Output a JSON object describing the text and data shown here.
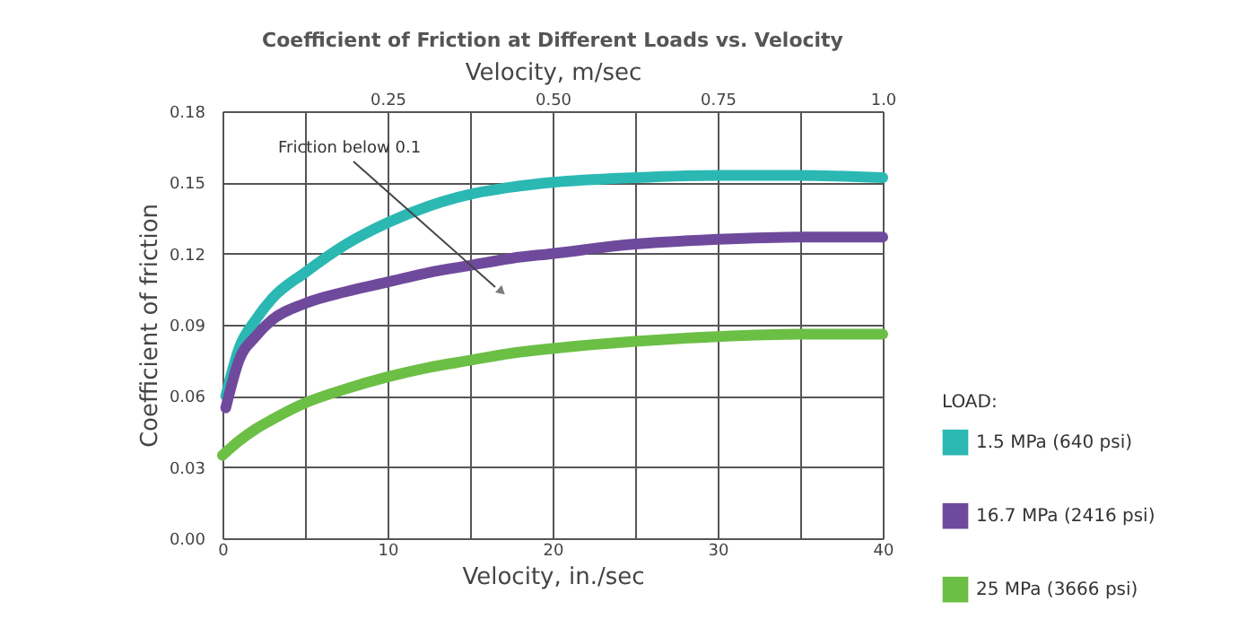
{
  "chart_data": {
    "type": "line",
    "title": "Coefficient of Friction at Different Loads vs. Velocity",
    "xlabel": "Velocity, in./sec",
    "ylabel": "Coefficient of friction",
    "x2label": "Velocity, m/sec",
    "legend_title": "LOAD:",
    "x": [
      0.2,
      1,
      2,
      3,
      5,
      7.5,
      10,
      12.5,
      15,
      17.5,
      20,
      25,
      30,
      35,
      40
    ],
    "series": [
      {
        "name": "1.5 MPa (640 psi)",
        "color": "#2bb8b3",
        "values": [
          0.06,
          0.08,
          0.092,
          0.101,
          0.112,
          0.124,
          0.133,
          0.14,
          0.145,
          0.148,
          0.15,
          0.152,
          0.153,
          0.153,
          0.152
        ]
      },
      {
        "name": "16.7 MPa (2416 psi)",
        "color": "#6f4a9c",
        "values": [
          0.055,
          0.075,
          0.085,
          0.092,
          0.099,
          0.104,
          0.108,
          0.112,
          0.115,
          0.118,
          0.12,
          0.124,
          0.126,
          0.127,
          0.127
        ]
      },
      {
        "name": "25 MPa (3666 psi)",
        "color": "#6cbf45",
        "x": [
          0,
          1,
          2,
          3,
          5,
          7.5,
          10,
          12.5,
          15,
          17.5,
          20,
          25,
          30,
          35,
          40
        ],
        "values": [
          0.035,
          0.041,
          0.046,
          0.05,
          0.057,
          0.063,
          0.068,
          0.072,
          0.075,
          0.078,
          0.08,
          0.083,
          0.085,
          0.086,
          0.086
        ]
      }
    ],
    "xlim": [
      0,
      40
    ],
    "xticks": [
      0,
      {
        "value": 5,
        "label": null
      },
      10,
      {
        "value": 15,
        "label": null
      },
      20,
      {
        "value": 25,
        "label": null
      },
      30,
      {
        "value": 35,
        "label": null
      },
      40
    ],
    "x2lim": [
      0,
      1.0
    ],
    "x2ticks": [
      0.25,
      {
        "value": 0.5,
        "label": "0.50"
      },
      0.75,
      {
        "value": 1.0,
        "label": "1.0"
      }
    ],
    "ylim": [
      0,
      0.18
    ],
    "yticks": [
      {
        "value": 0,
        "label": "0.00"
      },
      0.03,
      0.06,
      0.09,
      0.12,
      0.15,
      0.18
    ],
    "grid": true,
    "legend": "right",
    "line_style": "solid",
    "annotations": [
      "Friction below 0.1"
    ]
  }
}
